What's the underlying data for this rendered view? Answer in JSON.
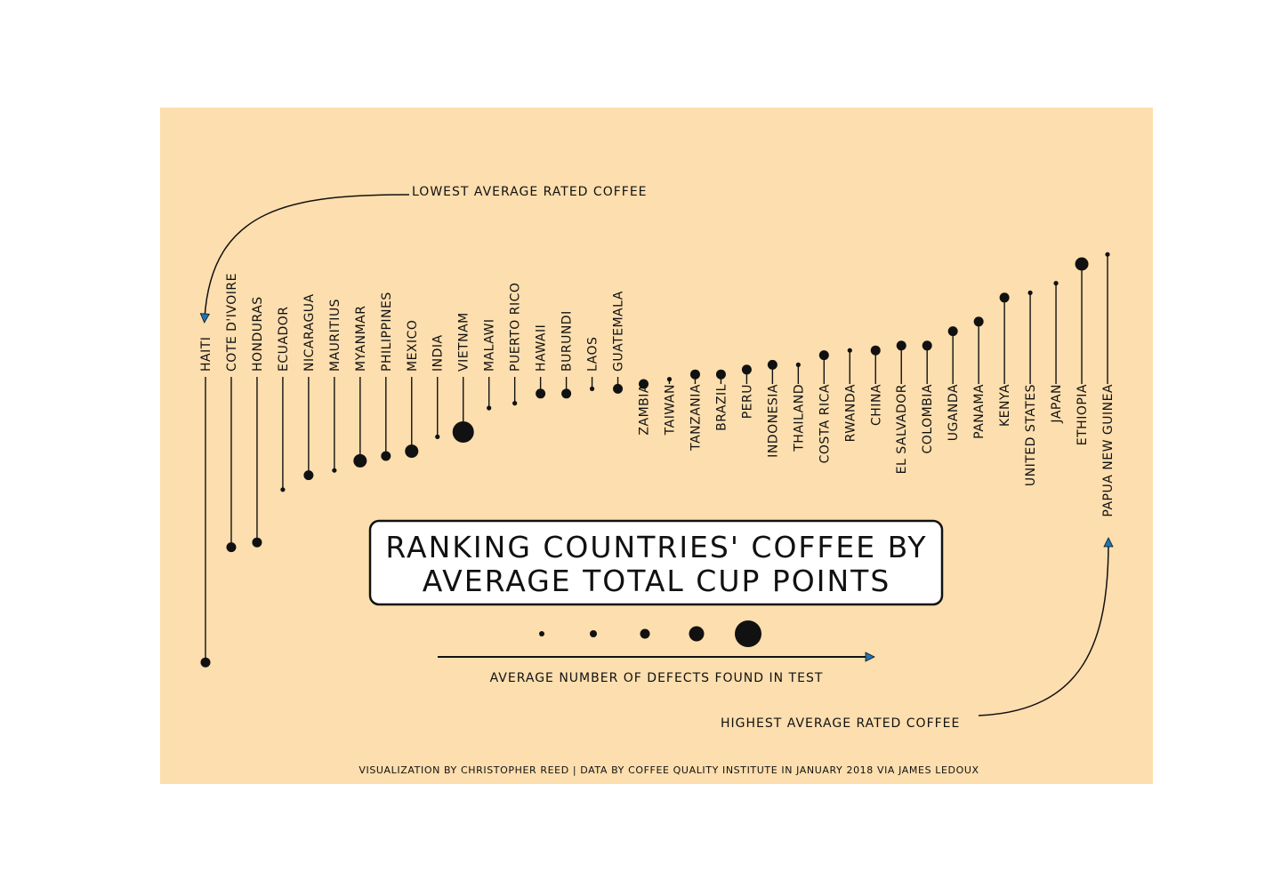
{
  "chart_data": {
    "type": "lollipop",
    "title": "RANKING COUNTRIES' COFFEE BY AVERAGE TOTAL CUP POINTS",
    "title_lines": [
      "RANKING COUNTRIES' COFFEE BY",
      "AVERAGE TOTAL CUP POINTS"
    ],
    "value_name": "average total cup points (relative rank)",
    "size_legend_label": "AVERAGE NUMBER OF DEFECTS FOUND IN TEST",
    "size_legend_steps": [
      1,
      2,
      3,
      4,
      5
    ],
    "annotation_low": "LOWEST AVERAGE RATED COFFEE",
    "annotation_high": "HIGHEST AVERAGE RATED COFFEE",
    "credit": "VISUALIZATION BY CHRISTOPHER REED | DATA BY COFFEE QUALITY INSTITUTE IN JANUARY 2018 VIA JAMES LEDOUX",
    "background_color": "#fddeae",
    "arrow_head_color": "#1f77b4",
    "scale": {
      "center": 79.0,
      "unit_scale": 0.5
    },
    "countries": [
      {
        "name": "HAITI",
        "score": 73.2,
        "defects": 2
      },
      {
        "name": "COTE D'IVOIRE",
        "score": 75.6,
        "defects": 2
      },
      {
        "name": "HONDURAS",
        "score": 75.7,
        "defects": 2
      },
      {
        "name": "ECUADOR",
        "score": 76.8,
        "defects": 1
      },
      {
        "name": "NICARAGUA",
        "score": 77.1,
        "defects": 2
      },
      {
        "name": "MAURITIUS",
        "score": 77.2,
        "defects": 1
      },
      {
        "name": "MYANMAR",
        "score": 77.4,
        "defects": 3
      },
      {
        "name": "PHILIPPINES",
        "score": 77.5,
        "defects": 2
      },
      {
        "name": "MEXICO",
        "score": 77.6,
        "defects": 3
      },
      {
        "name": "INDIA",
        "score": 77.9,
        "defects": 1
      },
      {
        "name": "VIETNAM",
        "score": 78.0,
        "defects": 5
      },
      {
        "name": "MALAWI",
        "score": 78.5,
        "defects": 1
      },
      {
        "name": "PUERTO RICO",
        "score": 78.6,
        "defects": 1
      },
      {
        "name": "HAWAII",
        "score": 78.8,
        "defects": 2
      },
      {
        "name": "BURUNDI",
        "score": 78.8,
        "defects": 2
      },
      {
        "name": "LAOS",
        "score": 78.9,
        "defects": 1
      },
      {
        "name": "GUATEMALA",
        "score": 78.9,
        "defects": 2
      },
      {
        "name": "ZAMBIA",
        "score": 79.0,
        "defects": 2
      },
      {
        "name": "TAIWAN",
        "score": 79.1,
        "defects": 1
      },
      {
        "name": "TANZANIA",
        "score": 79.2,
        "defects": 2
      },
      {
        "name": "BRAZIL",
        "score": 79.2,
        "defects": 2
      },
      {
        "name": "PERU",
        "score": 79.3,
        "defects": 2
      },
      {
        "name": "INDONESIA",
        "score": 79.4,
        "defects": 2
      },
      {
        "name": "THAILAND",
        "score": 79.4,
        "defects": 1
      },
      {
        "name": "COSTA RICA",
        "score": 79.6,
        "defects": 2
      },
      {
        "name": "RWANDA",
        "score": 79.7,
        "defects": 1
      },
      {
        "name": "CHINA",
        "score": 79.7,
        "defects": 2
      },
      {
        "name": "EL SALVADOR",
        "score": 79.8,
        "defects": 2
      },
      {
        "name": "COLOMBIA",
        "score": 79.8,
        "defects": 2
      },
      {
        "name": "UGANDA",
        "score": 80.1,
        "defects": 2
      },
      {
        "name": "PANAMA",
        "score": 80.3,
        "defects": 2
      },
      {
        "name": "KENYA",
        "score": 80.8,
        "defects": 2
      },
      {
        "name": "UNITED STATES",
        "score": 80.9,
        "defects": 1
      },
      {
        "name": "JAPAN",
        "score": 81.1,
        "defects": 1
      },
      {
        "name": "ETHIOPIA",
        "score": 81.5,
        "defects": 3
      },
      {
        "name": "PAPUA NEW GUINEA",
        "score": 81.7,
        "defects": 1
      }
    ]
  }
}
